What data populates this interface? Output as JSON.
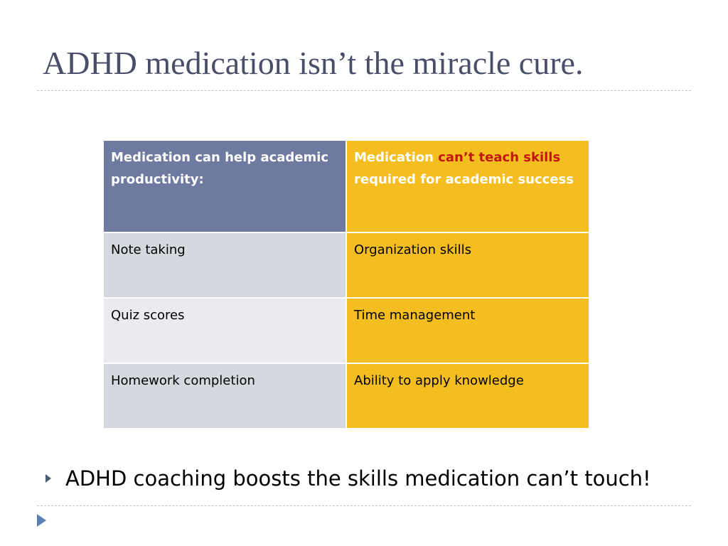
{
  "slide": {
    "title": "ADHD medication isn’t the miracle cure."
  },
  "table": {
    "header": {
      "left": "Medication can help academic productivity:",
      "right_prefix": "Medication ",
      "right_emphasis": "can’t teach skills",
      "right_suffix": " required for academic success"
    },
    "rows": [
      {
        "left": "Note taking",
        "right": "Organization skills"
      },
      {
        "left": "Quiz scores",
        "right": "Time management"
      },
      {
        "left": "Homework completion",
        "right": "Ability to apply knowledge"
      }
    ]
  },
  "bullet": {
    "text": "ADHD coaching boosts the skills medication can’t touch!",
    "icon": "triangle-bullet-icon"
  },
  "footer": {
    "icon": "slide-marker-icon"
  },
  "colors": {
    "title": "#4b4e68",
    "header_left": "#6f7aa0",
    "accent_gold": "#f5be20",
    "emphasis_red": "#c0180e",
    "row_shade_a": "#d6d8df",
    "row_shade_b": "#ebebef"
  }
}
